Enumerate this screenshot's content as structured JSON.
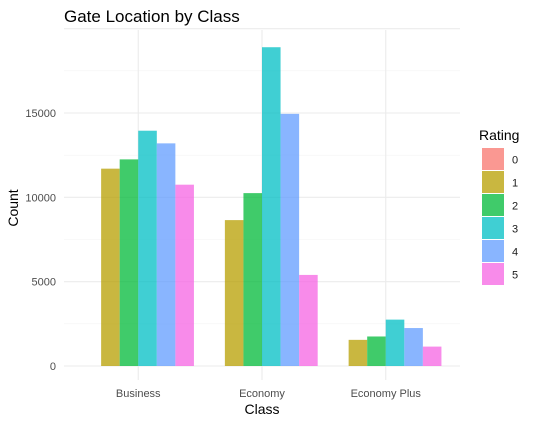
{
  "chart_data": {
    "type": "bar",
    "title": "Gate Location by Class",
    "xlabel": "Class",
    "ylabel": "Count",
    "categories": [
      "Business",
      "Economy",
      "Economy Plus"
    ],
    "ylim": [
      0,
      20000
    ],
    "yticks": [
      0,
      5000,
      10000,
      15000
    ],
    "grid": true,
    "legend": {
      "title": "Rating",
      "placement": "right"
    },
    "series": [
      {
        "name": "0",
        "color": "#F8766D",
        "values": [
          0,
          0,
          0
        ]
      },
      {
        "name": "1",
        "color": "#B79F00",
        "values": [
          11700,
          8650,
          1550
        ]
      },
      {
        "name": "2",
        "color": "#00BA38",
        "values": [
          12250,
          10250,
          1750
        ]
      },
      {
        "name": "3",
        "color": "#00BFC4",
        "values": [
          13950,
          18900,
          2750
        ]
      },
      {
        "name": "4",
        "color": "#619CFF",
        "values": [
          13200,
          14950,
          2250
        ]
      },
      {
        "name": "5",
        "color": "#F564E3",
        "values": [
          10750,
          5400,
          1150
        ]
      }
    ]
  }
}
